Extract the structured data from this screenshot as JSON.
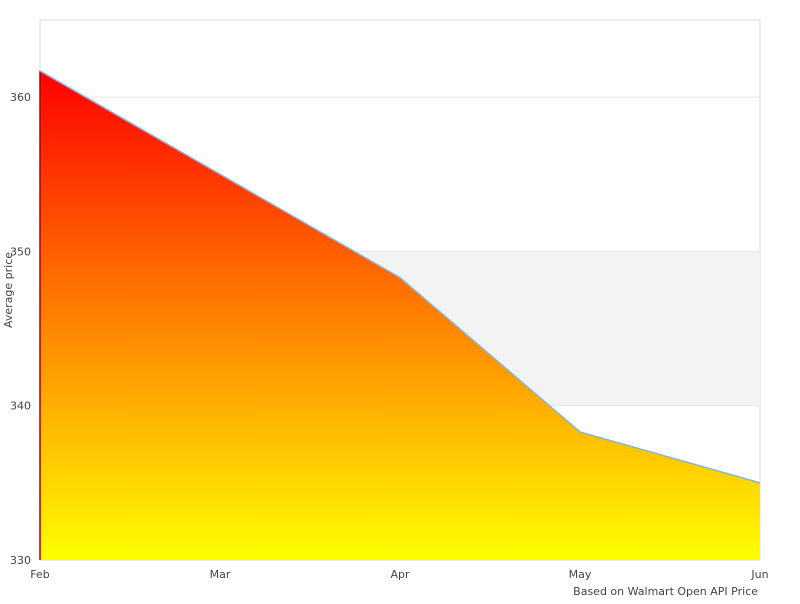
{
  "chart_data": {
    "type": "area",
    "title": "",
    "xlabel": "",
    "ylabel": "Average price",
    "credit": "Based on Walmart Open API Price",
    "categories": [
      "Feb",
      "Mar",
      "Apr",
      "May",
      "Jun"
    ],
    "values": [
      361.7,
      355.0,
      348.3,
      338.3,
      335.0
    ],
    "ylim": [
      330,
      365
    ],
    "yticks": [
      330,
      340,
      350,
      360
    ],
    "grid": true,
    "plot_band": {
      "from": 340,
      "to": 350,
      "color": "#f3f3f3"
    },
    "colors": {
      "line": "#7cb5ec",
      "fill_top": "#ff0000",
      "fill_bottom": "#ffff00",
      "grid": "#e6e6e6"
    }
  }
}
